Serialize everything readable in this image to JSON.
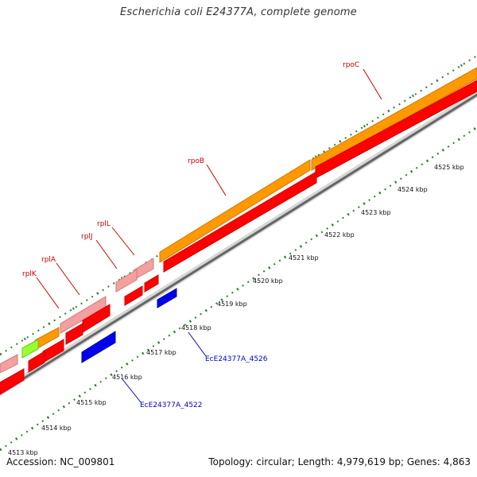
{
  "title": "Escherichia coli E24377A, complete genome",
  "footer": {
    "accession": "Accession: NC_009801",
    "summary": "Topology: circular; Length: 4,979,619 bp; Genes: 4,863"
  },
  "colors": {
    "background": "#ffffff",
    "backbone_dark": "#666666",
    "backbone_light": "#d6d6d6",
    "cds_red": "#ff0000",
    "rna_orange": "#ff9900",
    "rna_pink": "#f4a0a0",
    "rna_green": "#99ff33",
    "cds_blue": "#0000ee",
    "gene_label_red": "#cc0000",
    "gene_label_blue": "#0000cc",
    "tick_green": "#2f7d2f",
    "kbp_label": "#111111"
  },
  "scale_labels": [
    "4513 kbp",
    "4514 kbp",
    "4515 kbp",
    "4516 kbp",
    "4517 kbp",
    "4518 kbp",
    "4519 kbp",
    "4520 kbp",
    "4521 kbp",
    "4522 kbp",
    "4523 kbp",
    "4524 kbp",
    "4525 kbp"
  ],
  "gene_labels": {
    "rplK": "rplK",
    "rplA": "rplA",
    "rplJ": "rplJ",
    "rplL": "rplL",
    "rpoB": "rpoB",
    "rpoC": "rpoC",
    "EcE24377A_4522": "EcE24377A_4522",
    "EcE24377A_4526": "EcE24377A_4526"
  }
}
